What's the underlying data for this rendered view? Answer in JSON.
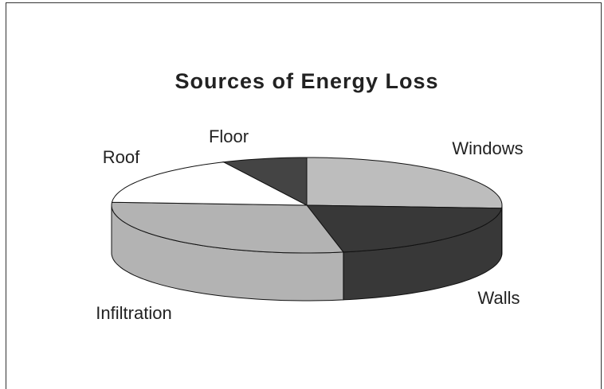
{
  "chart_data": {
    "type": "pie",
    "title": "Sources of Energy Loss",
    "categories": [
      "Windows",
      "Walls",
      "Infiltration",
      "Roof",
      "Floor"
    ],
    "values": [
      26,
      21,
      29,
      17,
      7
    ],
    "colors": [
      "#bdbdbd",
      "#383838",
      "#b3b3b3",
      "#ffffff",
      "#444444"
    ]
  }
}
